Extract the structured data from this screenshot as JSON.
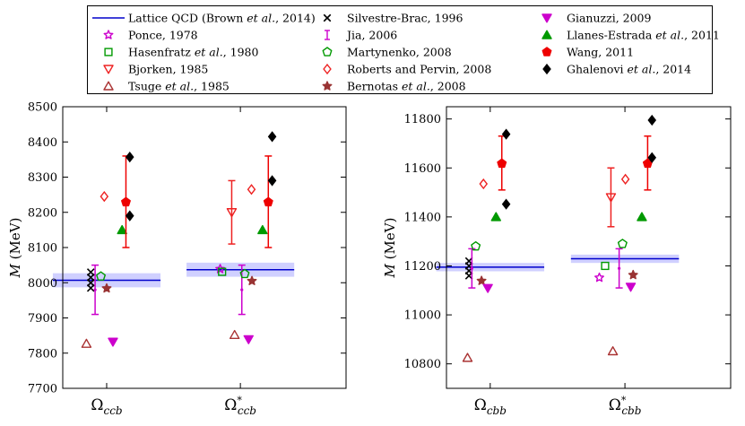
{
  "legend": {
    "columns": [
      [
        {
          "key": "lattice",
          "label": "Lattice QCD (Brown et al., 2014)"
        },
        {
          "key": "ponce",
          "label": "Ponce, 1978"
        },
        {
          "key": "hasenfratz",
          "label": "Hasenfratz et al., 1980"
        },
        {
          "key": "bjorken",
          "label": "Bjorken, 1985"
        },
        {
          "key": "tsuge",
          "label": "Tsuge et al., 1985"
        }
      ],
      [
        {
          "key": "silvestre",
          "label": "Silvestre-Brac, 1996"
        },
        {
          "key": "jia",
          "label": "Jia, 2006"
        },
        {
          "key": "martynenko",
          "label": "Martynenko, 2008"
        },
        {
          "key": "roberts",
          "label": "Roberts and Pervin, 2008"
        },
        {
          "key": "bernotas",
          "label": "Bernotas et al., 2008"
        }
      ],
      [
        {
          "key": "gianuzzi",
          "label": "Gianuzzi, 2009"
        },
        {
          "key": "llanes",
          "label": "Llanes-Estrada et al., 2011"
        },
        {
          "key": "wang",
          "label": "Wang, 2011"
        },
        {
          "key": "ghalenovi",
          "label": "Ghalenovi et al., 2014"
        }
      ]
    ]
  },
  "styles": {
    "lattice": {
      "marker": "line",
      "color": "#0000cc"
    },
    "ponce": {
      "marker": "star",
      "color": "#cc00cc",
      "filled": false
    },
    "hasenfratz": {
      "marker": "square",
      "color": "#009900",
      "filled": false
    },
    "bjorken": {
      "marker": "tri-down",
      "color": "#ee2222",
      "filled": false
    },
    "tsuge": {
      "marker": "tri-up",
      "color": "#aa3333",
      "filled": false
    },
    "silvestre": {
      "marker": "x",
      "color": "#000000"
    },
    "jia": {
      "marker": "errbar",
      "color": "#cc00cc"
    },
    "martynenko": {
      "marker": "pentagon",
      "color": "#009900",
      "filled": false
    },
    "roberts": {
      "marker": "diamond",
      "color": "#ee2222",
      "filled": false
    },
    "bernotas": {
      "marker": "star",
      "color": "#993333",
      "filled": true
    },
    "gianuzzi": {
      "marker": "tri-down",
      "color": "#cc00cc",
      "filled": true
    },
    "llanes": {
      "marker": "tri-up",
      "color": "#009900",
      "filled": true
    },
    "wang": {
      "marker": "pentagon",
      "color": "#ee0000",
      "filled": true
    },
    "ghalenovi": {
      "marker": "diamond",
      "color": "#000000",
      "filled": true
    },
    "band_color": "#aaaaff"
  },
  "chart_data": [
    {
      "type": "scatter",
      "ylabel": "M (MeV)",
      "ylim": [
        7700,
        8500
      ],
      "yticks": [
        7700,
        7800,
        7900,
        8000,
        8100,
        8200,
        8300,
        8400,
        8500
      ],
      "categories": [
        {
          "base": "Ω",
          "sub": "ccb",
          "star": false
        },
        {
          "base": "Ω",
          "sub": "ccb",
          "star": true
        }
      ],
      "lattice": [
        {
          "value": 8007,
          "band": [
            7987,
            8027
          ]
        },
        {
          "value": 8037,
          "band": [
            8017,
            8057
          ]
        }
      ],
      "points": [
        {
          "cat": 0,
          "offset": -0.42,
          "series": "tsuge",
          "y": 7827
        },
        {
          "cat": 0,
          "offset": -0.33,
          "series": "silvestre",
          "y": 8030
        },
        {
          "cat": 0,
          "offset": -0.33,
          "series": "silvestre",
          "y": 8015
        },
        {
          "cat": 0,
          "offset": -0.33,
          "series": "silvestre",
          "y": 8000
        },
        {
          "cat": 0,
          "offset": -0.33,
          "series": "silvestre",
          "y": 7985
        },
        {
          "cat": 0,
          "offset": -0.24,
          "series": "jia",
          "y": 7980,
          "yerr": [
            7910,
            8050
          ]
        },
        {
          "cat": 0,
          "offset": -0.12,
          "series": "martynenko",
          "y": 8018
        },
        {
          "cat": 0,
          "offset": 0.0,
          "series": "bernotas",
          "y": 7984
        },
        {
          "cat": 0,
          "offset": -0.05,
          "series": "roberts",
          "y": 8245
        },
        {
          "cat": 0,
          "offset": 0.13,
          "series": "gianuzzi",
          "y": 7832
        },
        {
          "cat": 0,
          "offset": 0.32,
          "series": "llanes",
          "y": 8150
        },
        {
          "cat": 0,
          "offset": 0.4,
          "series": "wang",
          "y": 8229,
          "yerr": [
            8100,
            8360
          ]
        },
        {
          "cat": 0,
          "offset": 0.48,
          "series": "ghalenovi",
          "y": 8357
        },
        {
          "cat": 0,
          "offset": 0.48,
          "series": "ghalenovi",
          "y": 8190
        },
        {
          "cat": 1,
          "offset": -0.42,
          "series": "ponce",
          "y": 8039
        },
        {
          "cat": 1,
          "offset": -0.38,
          "series": "hasenfratz",
          "y": 8031
        },
        {
          "cat": 1,
          "offset": -0.18,
          "series": "bjorken",
          "y": 8200,
          "yerr": [
            8110,
            8290
          ]
        },
        {
          "cat": 1,
          "offset": -0.12,
          "series": "tsuge",
          "y": 7852
        },
        {
          "cat": 1,
          "offset": 0.03,
          "series": "jia",
          "y": 7980,
          "yerr": [
            7910,
            8050
          ]
        },
        {
          "cat": 1,
          "offset": 0.09,
          "series": "martynenko",
          "y": 8025
        },
        {
          "cat": 1,
          "offset": 0.23,
          "series": "roberts",
          "y": 8265
        },
        {
          "cat": 1,
          "offset": 0.24,
          "series": "bernotas",
          "y": 8005
        },
        {
          "cat": 1,
          "offset": 0.17,
          "series": "gianuzzi",
          "y": 7839
        },
        {
          "cat": 1,
          "offset": 0.46,
          "series": "llanes",
          "y": 8150
        },
        {
          "cat": 1,
          "offset": 0.58,
          "series": "wang",
          "y": 8229,
          "yerr": [
            8100,
            8360
          ]
        },
        {
          "cat": 1,
          "offset": 0.66,
          "series": "ghalenovi",
          "y": 8415
        },
        {
          "cat": 1,
          "offset": 0.66,
          "series": "ghalenovi",
          "y": 8290
        }
      ]
    },
    {
      "type": "scatter",
      "ylabel": "M (MeV)",
      "ylim": [
        10700,
        11850
      ],
      "yticks": [
        10800,
        11000,
        11200,
        11400,
        11600,
        11800
      ],
      "categories": [
        {
          "base": "Ω",
          "sub": "cbb",
          "star": false
        },
        {
          "base": "Ω",
          "sub": "cbb",
          "star": true
        }
      ],
      "lattice": [
        {
          "value": 11195,
          "band": [
            11178,
            11212
          ]
        },
        {
          "value": 11229,
          "band": [
            11212,
            11246
          ]
        }
      ],
      "points": [
        {
          "cat": 0,
          "offset": -0.47,
          "series": "tsuge",
          "y": 10825
        },
        {
          "cat": 0,
          "offset": -0.44,
          "series": "silvestre",
          "y": 11220
        },
        {
          "cat": 0,
          "offset": -0.44,
          "series": "silvestre",
          "y": 11200
        },
        {
          "cat": 0,
          "offset": -0.44,
          "series": "silvestre",
          "y": 11180
        },
        {
          "cat": 0,
          "offset": -0.44,
          "series": "silvestre",
          "y": 11160
        },
        {
          "cat": 0,
          "offset": -0.38,
          "series": "jia",
          "y": 11190,
          "yerr": [
            11110,
            11270
          ]
        },
        {
          "cat": 0,
          "offset": -0.3,
          "series": "martynenko",
          "y": 11280
        },
        {
          "cat": 0,
          "offset": -0.18,
          "series": "bernotas",
          "y": 11139
        },
        {
          "cat": 0,
          "offset": -0.14,
          "series": "roberts",
          "y": 11535
        },
        {
          "cat": 0,
          "offset": -0.05,
          "series": "gianuzzi",
          "y": 11109
        },
        {
          "cat": 0,
          "offset": 0.12,
          "series": "llanes",
          "y": 11400
        },
        {
          "cat": 0,
          "offset": 0.24,
          "series": "wang",
          "y": 11618,
          "yerr": [
            11510,
            11730
          ]
        },
        {
          "cat": 0,
          "offset": 0.33,
          "series": "ghalenovi",
          "y": 11738
        },
        {
          "cat": 0,
          "offset": 0.33,
          "series": "ghalenovi",
          "y": 11452
        },
        {
          "cat": 1,
          "offset": -0.53,
          "series": "ponce",
          "y": 11152
        },
        {
          "cat": 1,
          "offset": -0.41,
          "series": "hasenfratz",
          "y": 11200
        },
        {
          "cat": 1,
          "offset": -0.29,
          "series": "bjorken",
          "y": 11480,
          "yerr": [
            11360,
            11600
          ]
        },
        {
          "cat": 1,
          "offset": -0.25,
          "series": "tsuge",
          "y": 10852
        },
        {
          "cat": 1,
          "offset": -0.12,
          "series": "jia",
          "y": 11190,
          "yerr": [
            11110,
            11270
          ]
        },
        {
          "cat": 1,
          "offset": -0.05,
          "series": "martynenko",
          "y": 11290
        },
        {
          "cat": 1,
          "offset": 0.01,
          "series": "roberts",
          "y": 11554
        },
        {
          "cat": 1,
          "offset": 0.17,
          "series": "bernotas",
          "y": 11163
        },
        {
          "cat": 1,
          "offset": 0.12,
          "series": "gianuzzi",
          "y": 11114
        },
        {
          "cat": 1,
          "offset": 0.35,
          "series": "llanes",
          "y": 11400
        },
        {
          "cat": 1,
          "offset": 0.47,
          "series": "wang",
          "y": 11618,
          "yerr": [
            11510,
            11730
          ]
        },
        {
          "cat": 1,
          "offset": 0.56,
          "series": "ghalenovi",
          "y": 11795
        },
        {
          "cat": 1,
          "offset": 0.56,
          "series": "ghalenovi",
          "y": 11642
        }
      ]
    }
  ]
}
